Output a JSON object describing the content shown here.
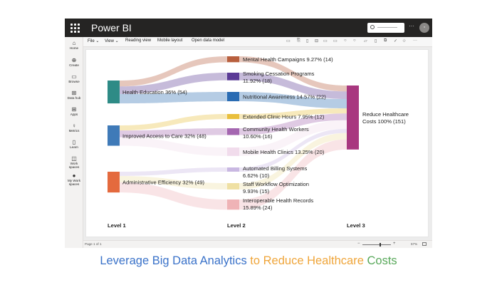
{
  "app": {
    "title": "Power BI",
    "search_placeholder": "————",
    "overflow": "···",
    "avatar": "◦"
  },
  "nav": [
    {
      "name": "home",
      "label": "Home",
      "icon": "⌂"
    },
    {
      "name": "create",
      "label": "Create",
      "icon": "⊕"
    },
    {
      "name": "browse",
      "label": "Browse",
      "icon": "▭"
    },
    {
      "name": "datahub",
      "label": "Data hub",
      "icon": "⊞"
    },
    {
      "name": "apps",
      "label": "Apps",
      "icon": "⊞"
    },
    {
      "name": "metrics",
      "label": "Metrics",
      "icon": "♀"
    },
    {
      "name": "learn",
      "label": "Learn",
      "icon": "▯"
    },
    {
      "name": "workspaces",
      "label": "Work spaces",
      "icon": "◫"
    },
    {
      "name": "my-workspaces",
      "label": "My Work spaces",
      "icon": "●"
    }
  ],
  "menu": {
    "file": "File",
    "view": "View",
    "reading_view": "Reading view",
    "mobile_layout": "Mobile layout",
    "open_data_model": "Open data model",
    "caret": "⌄"
  },
  "toolbar_icons": [
    "▭",
    "⎘",
    "▯",
    "⊟",
    "▭",
    "▭",
    "○",
    "○",
    "▱",
    "▯",
    "⧉",
    "✓",
    "☆",
    "···"
  ],
  "status": {
    "page": "Page 1 of 1",
    "zoom": "57%",
    "minus": "−",
    "plus": "+"
  },
  "caption": {
    "part1": "Leverage Big Data Analytics",
    "part2": " to Reduce Healthcare",
    "part3": " Costs"
  },
  "chart_data": {
    "type": "sankey",
    "levels": [
      "Level 1",
      "Level 2",
      "Level 3"
    ],
    "level1": [
      {
        "name": "Health Education",
        "label": "Health Education 36% (54)",
        "value": 54,
        "color": "#2e8b86"
      },
      {
        "name": "Improved Access to Care",
        "label": "Improved Access to Care 32% (48)",
        "value": 48,
        "color": "#3f7ab8"
      },
      {
        "name": "Administrative Efficiency",
        "label": "Administrative Efficiency 32% (49)",
        "value": 49,
        "color": "#e46a3e"
      }
    ],
    "level2": [
      {
        "name": "Mental Health Campaigns",
        "label1": "Mental Health Campaigns 9.27% (14)",
        "label2": "",
        "value": 14,
        "color": "#b85f3e",
        "source": 0
      },
      {
        "name": "Smoking Cessation Programs",
        "label1": "Smoking Cessation Programs",
        "label2": "11.92% (18)",
        "value": 18,
        "color": "#5b3b96",
        "source": 0
      },
      {
        "name": "Nutritional Awareness",
        "label1": "Nutritional Awareness 14.57% (22)",
        "label2": "",
        "value": 22,
        "color": "#2a6cb3",
        "source": 0
      },
      {
        "name": "Extended Clinic Hours",
        "label1": "Extended Clinic Hours 7.95% (12)",
        "label2": "",
        "value": 12,
        "color": "#e9bf3c",
        "source": 1
      },
      {
        "name": "Community Health Workers",
        "label1": "Community Health Workers",
        "label2": "10.60% (16)",
        "value": 16,
        "color": "#a466b0",
        "source": 1
      },
      {
        "name": "Mobile Health Clinics",
        "label1": "Mobile Health Clinics 13.25% (20)",
        "label2": "",
        "value": 20,
        "color": "#f1dcec",
        "source": 1
      },
      {
        "name": "Automated Billing Systems",
        "label1": "Automated Billing Systems",
        "label2": "6.62% (10)",
        "value": 10,
        "color": "#c9b8e2",
        "source": 2
      },
      {
        "name": "Staff Workflow Optimization",
        "label1": "Staff Workflow Optimization",
        "label2": "9.93% (15)",
        "value": 15,
        "color": "#efe0a3",
        "source": 2
      },
      {
        "name": "Interoperable Health Records",
        "label1": "Interoperable Health Records",
        "label2": "15.89% (24)",
        "value": 24,
        "color": "#efb3b6",
        "source": 2
      }
    ],
    "level3": [
      {
        "name": "Reduce Healthcare Costs",
        "label1": "Reduce Healthcare",
        "label2": "Costs 100% (151)",
        "value": 151,
        "color": "#a8377f"
      }
    ]
  }
}
